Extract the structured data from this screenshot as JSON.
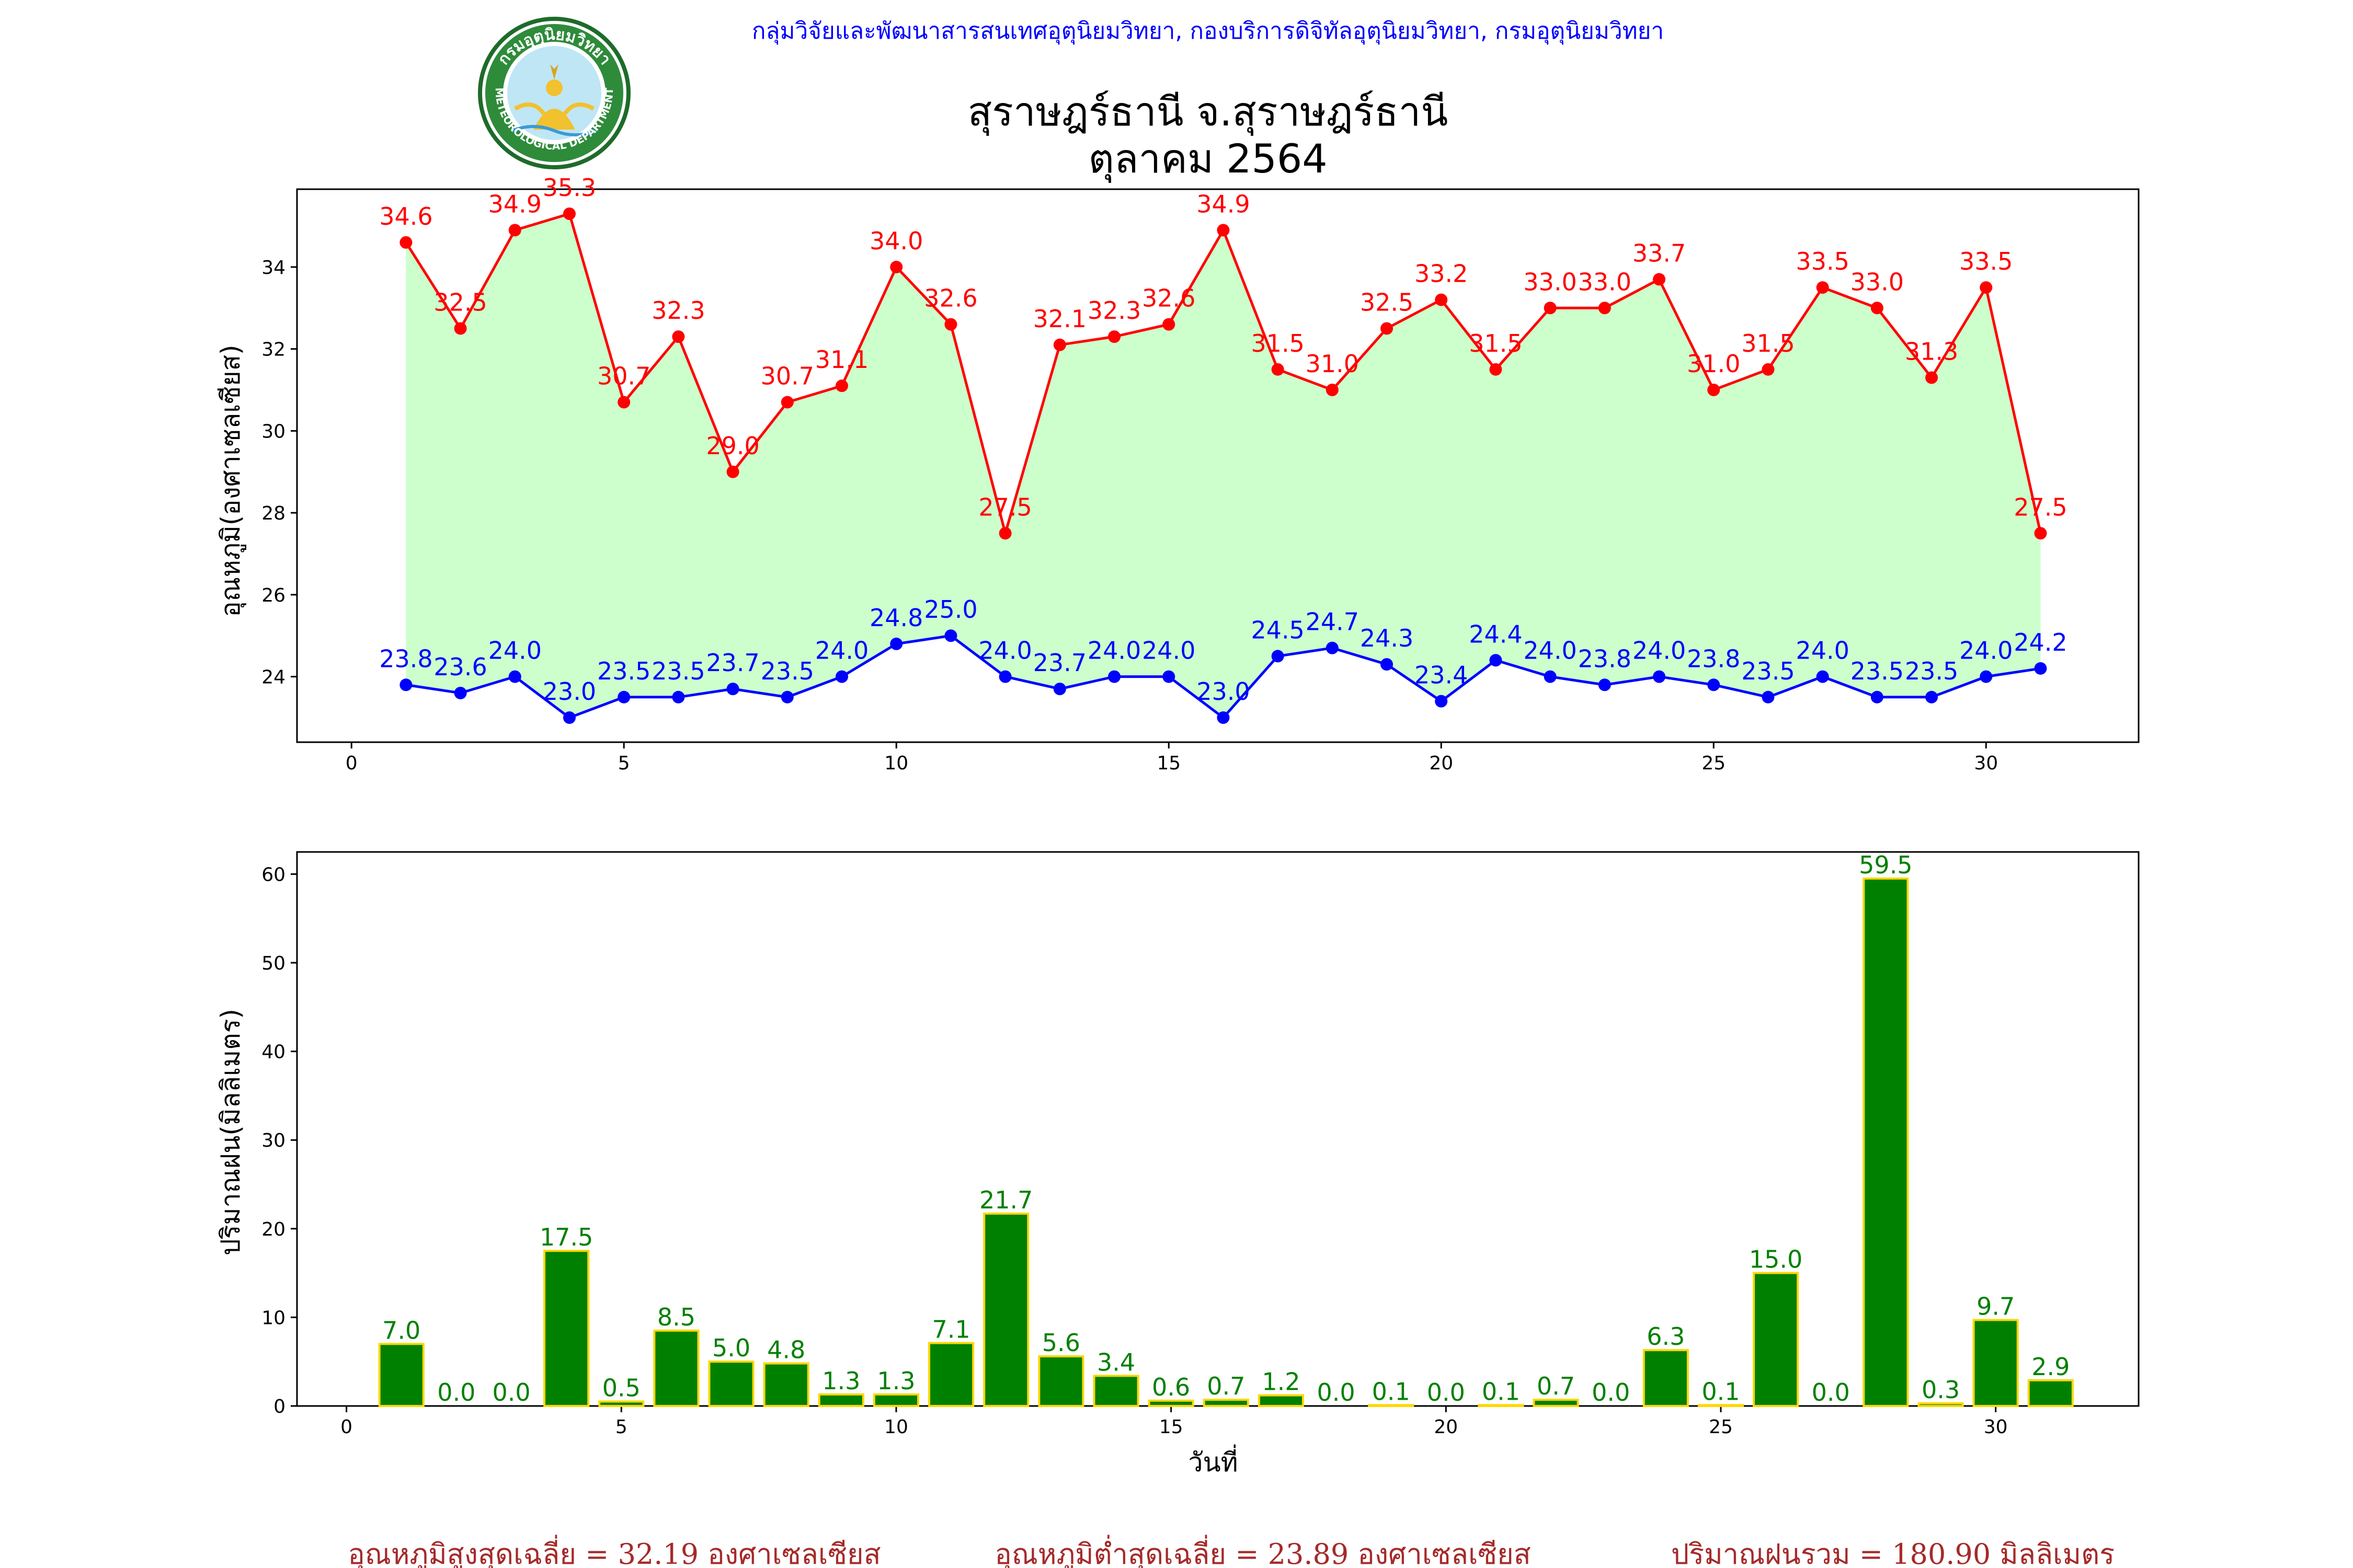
{
  "header": {
    "organization": "กลุ่มวิจัยและพัฒนาสารสนเทศอุตุนิยมวิทยา, กองบริการดิจิทัลอุตุนิยมวิทยา, กรมอุตุนิยมวิทยา",
    "station": "สุราษฎร์ธานี จ.สุราษฎร์ธานี",
    "period": "ตุลาคม 2564",
    "logo": {
      "icon": "meteorological-department-seal-icon",
      "text_top": "กรมอุตุนิยมวิทยา",
      "text_bottom": "METEOROLOGICAL DEPARTMENT"
    }
  },
  "colors": {
    "max": "#ff0000",
    "min": "#0000ff",
    "fill": "#ccffcc",
    "bar": "#008000",
    "bar_edge": "#ffd700",
    "org_text": "#0000ff",
    "footer_text": "#a52a2a"
  },
  "chart_data": [
    {
      "type": "line",
      "ylabel": "อุณหภูมิ(องศาเซลเซียส)",
      "xlabel": "",
      "x": [
        1,
        2,
        3,
        4,
        5,
        6,
        7,
        8,
        9,
        10,
        11,
        12,
        13,
        14,
        15,
        16,
        17,
        18,
        19,
        20,
        21,
        22,
        23,
        24,
        25,
        26,
        27,
        28,
        29,
        30,
        31
      ],
      "series": [
        {
          "values": [
            34.6,
            32.5,
            34.9,
            35.3,
            30.7,
            32.3,
            29.0,
            30.7,
            31.1,
            34.0,
            32.6,
            27.5,
            32.1,
            32.3,
            32.6,
            34.9,
            31.5,
            31.0,
            32.5,
            33.2,
            31.5,
            33.0,
            33.0,
            33.7,
            31.0,
            31.5,
            33.5,
            33.0,
            31.3,
            33.5,
            27.5
          ],
          "labels": [
            "34.6",
            "32.5",
            "34.9",
            "35.3",
            "30.7",
            "32.3",
            "29.0",
            "30.7",
            "31.1",
            "34.0",
            "32.6",
            "27.5",
            "32.1",
            "32.3",
            "32.6",
            "34.9",
            "31.5",
            "31.0",
            "32.5",
            "33.2",
            "31.5",
            "33.0",
            "33.0",
            "33.7",
            "31.0",
            "31.5",
            "33.5",
            "33.0",
            "31.3",
            "33.5",
            "27.5"
          ]
        },
        {
          "values": [
            23.8,
            23.6,
            24.0,
            23.0,
            23.5,
            23.5,
            23.7,
            23.5,
            24.0,
            24.8,
            25.0,
            24.0,
            23.7,
            24.0,
            24.0,
            23.0,
            24.5,
            24.7,
            24.3,
            23.4,
            24.4,
            24.0,
            23.8,
            24.0,
            23.8,
            23.5,
            24.0,
            23.5,
            23.5,
            24.0,
            24.2
          ],
          "labels": [
            "23.8",
            "23.6",
            "24.0",
            "23.0",
            "23.5",
            "23.5",
            "23.7",
            "23.5",
            "24.0",
            "24.8",
            "25.0",
            "24.0",
            "23.7",
            "24.0",
            "24.0",
            "23.0",
            "24.5",
            "24.7",
            "24.3",
            "23.4",
            "24.4",
            "24.0",
            "23.8",
            "24.0",
            "23.8",
            "23.5",
            "24.0",
            "23.5",
            "23.5",
            "24.0",
            "24.2"
          ]
        }
      ],
      "xlim": [
        -1,
        32.8
      ],
      "ylim": [
        22.4,
        35.9
      ],
      "xticks": [
        0,
        5,
        10,
        15,
        20,
        25,
        30
      ],
      "xtick_labels": [
        "0",
        "5",
        "10",
        "15",
        "20",
        "25",
        "30"
      ],
      "yticks": [
        24,
        26,
        28,
        30,
        32,
        34
      ],
      "ytick_labels": [
        "24",
        "26",
        "28",
        "30",
        "32",
        "34"
      ],
      "grid": false,
      "legend": "none"
    },
    {
      "type": "bar",
      "ylabel": "ปริมาณฝน(มิลลิเมตร)",
      "xlabel": "วันที่",
      "x": [
        1,
        2,
        3,
        4,
        5,
        6,
        7,
        8,
        9,
        10,
        11,
        12,
        13,
        14,
        15,
        16,
        17,
        18,
        19,
        20,
        21,
        22,
        23,
        24,
        25,
        26,
        27,
        28,
        29,
        30,
        31
      ],
      "values": [
        7.0,
        0.0,
        0.0,
        17.5,
        0.5,
        8.5,
        5.0,
        4.8,
        1.3,
        1.3,
        7.1,
        21.7,
        5.6,
        3.4,
        0.6,
        0.7,
        1.2,
        0.0,
        0.1,
        0.0,
        0.1,
        0.7,
        0.0,
        6.3,
        0.1,
        15.0,
        0.0,
        59.5,
        0.3,
        9.7,
        2.9
      ],
      "labels": [
        "7.0",
        "0.0",
        "0.0",
        "17.5",
        "0.5",
        "8.5",
        "5.0",
        "4.8",
        "1.3",
        "1.3",
        "7.1",
        "21.7",
        "5.6",
        "3.4",
        "0.6",
        "0.7",
        "1.2",
        "0.0",
        "0.1",
        "0.0",
        "0.1",
        "0.7",
        "0.0",
        "6.3",
        "0.1",
        "15.0",
        "0.0",
        "59.5",
        "0.3",
        "9.7",
        "2.9"
      ],
      "xlim": [
        -0.9,
        32.6
      ],
      "ylim": [
        0,
        62.5
      ],
      "xticks": [
        0,
        5,
        10,
        15,
        20,
        25,
        30
      ],
      "xtick_labels": [
        "0",
        "5",
        "10",
        "15",
        "20",
        "25",
        "30"
      ],
      "yticks": [
        0,
        10,
        20,
        30,
        40,
        50,
        60
      ],
      "ytick_labels": [
        "0",
        "10",
        "20",
        "30",
        "40",
        "50",
        "60"
      ],
      "grid": false,
      "legend": "none"
    }
  ],
  "footer": {
    "avg_max": "อุณหภูมิสูงสุดเฉลี่ย = 32.19 องศาเซลเซียส",
    "avg_min": "อุณหภูมิต่ำสุดเฉลี่ย = 23.89 องศาเซลเซียส",
    "rain_total": "ปริมาณฝนรวม = 180.90 มิลลิเมตร"
  }
}
